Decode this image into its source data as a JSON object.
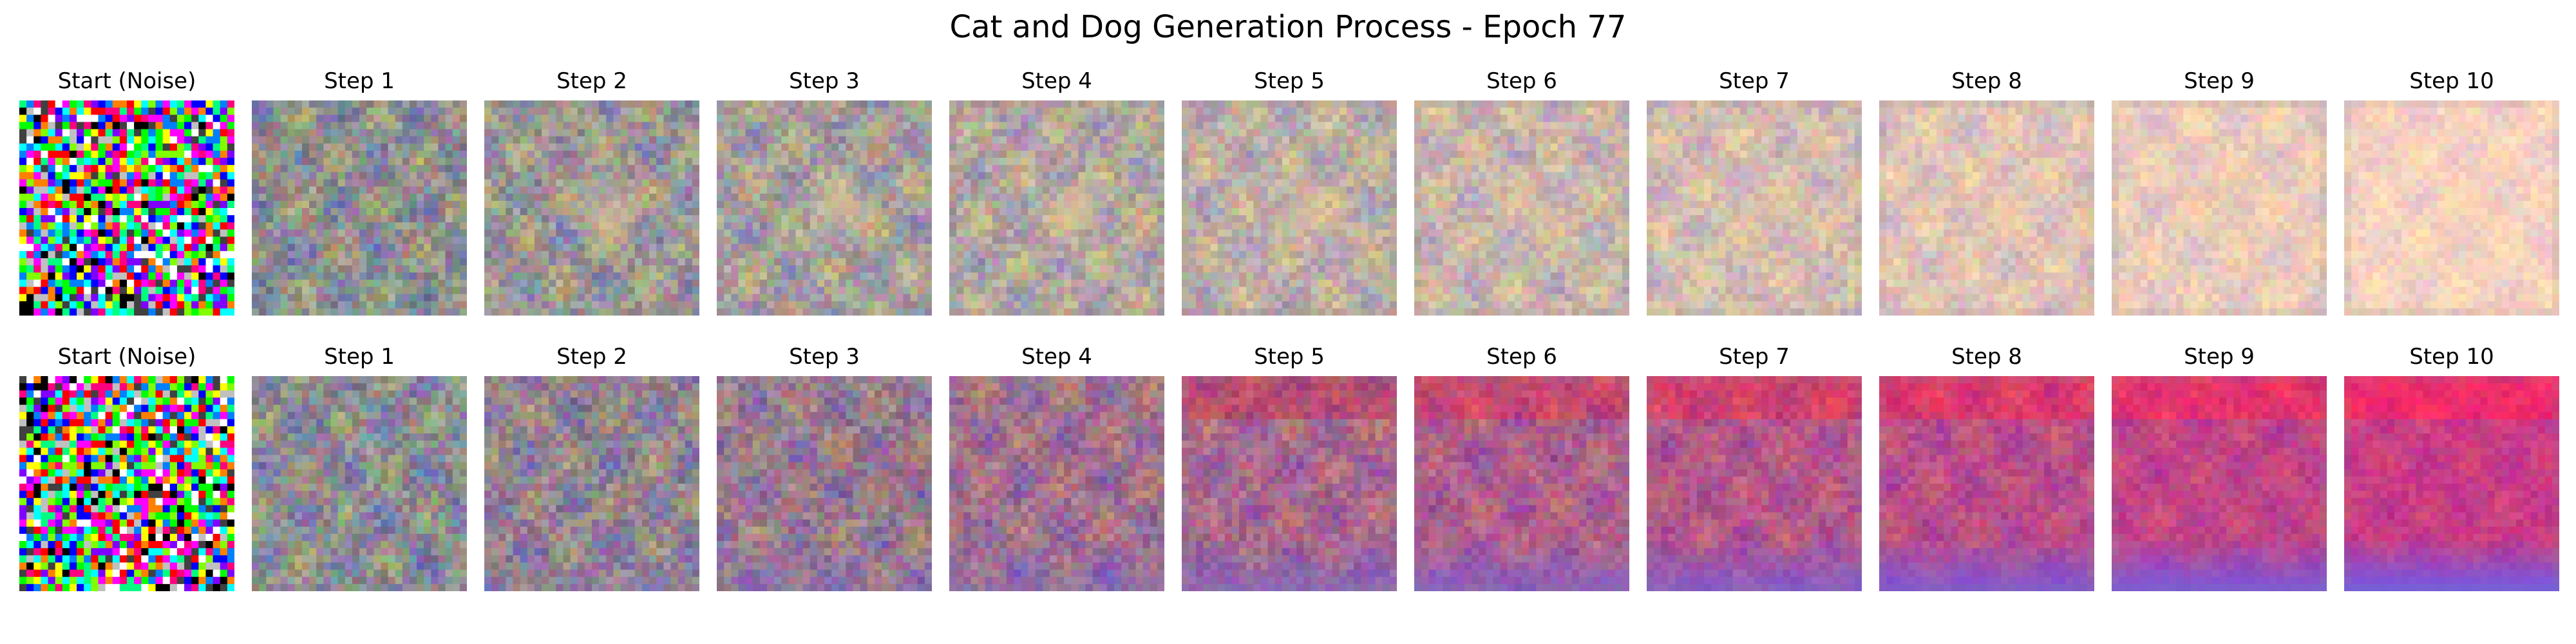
{
  "title": "Cat and Dog Generation Process - Epoch 77",
  "rows": [
    {
      "panels": [
        {
          "label": "Start (Noise)",
          "image": "random color noise"
        },
        {
          "label": "Step 1",
          "image": "blurred grey-brown noise"
        },
        {
          "label": "Step 2",
          "image": "pinkish-lavender blurry blobs"
        },
        {
          "label": "Step 3",
          "image": "pink-beige blurry blobs"
        },
        {
          "label": "Step 4",
          "image": "light peach blur"
        },
        {
          "label": "Step 5",
          "image": "light peach blur"
        },
        {
          "label": "Step 6",
          "image": "pale peach blur"
        },
        {
          "label": "Step 7",
          "image": "pale peach blur"
        },
        {
          "label": "Step 8",
          "image": "pale peach blur"
        },
        {
          "label": "Step 9",
          "image": "pale peach blur"
        },
        {
          "label": "Step 10",
          "image": "pale peach blur"
        }
      ],
      "palette": {
        "start": "#8f8f8f",
        "end": "#f6d2c0",
        "accent": "#f3d19a"
      }
    },
    {
      "panels": [
        {
          "label": "Start (Noise)",
          "image": "random color noise"
        },
        {
          "label": "Step 1",
          "image": "blurred grey-blue noise"
        },
        {
          "label": "Step 2",
          "image": "purple-red blurry blobs"
        },
        {
          "label": "Step 3",
          "image": "purple-red blurry blobs"
        },
        {
          "label": "Step 4",
          "image": "magenta-purple blur"
        },
        {
          "label": "Step 5",
          "image": "magenta-purple blur"
        },
        {
          "label": "Step 6",
          "image": "red-magenta blur"
        },
        {
          "label": "Step 7",
          "image": "red-magenta blur with violet bottom"
        },
        {
          "label": "Step 8",
          "image": "red-magenta blur with violet bottom"
        },
        {
          "label": "Step 9",
          "image": "red-magenta blur with violet bottom"
        },
        {
          "label": "Step 10",
          "image": "red-magenta blur with violet bottom"
        }
      ],
      "palette": {
        "start": "#8c8c92",
        "end": "#c83c86",
        "accent": "#6a5cf0"
      }
    }
  ]
}
